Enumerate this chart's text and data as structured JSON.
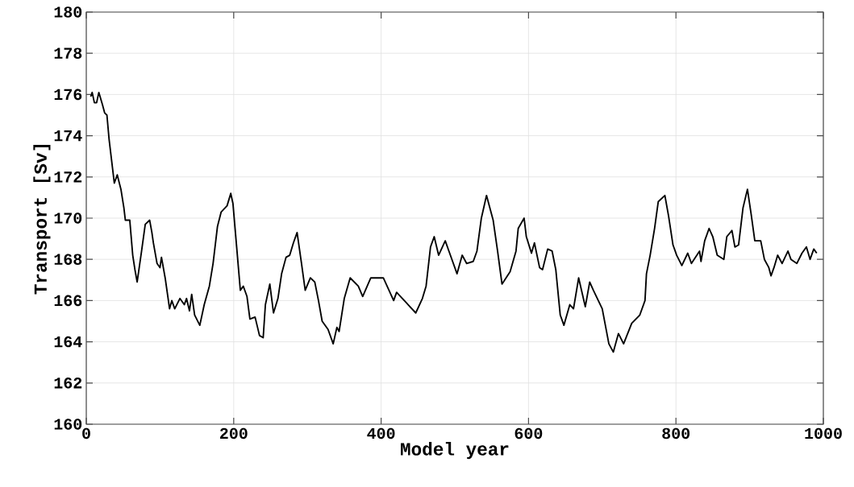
{
  "chart_data": {
    "type": "line",
    "xlabel": "Model year",
    "ylabel": "Transport [Sv]",
    "xlim": [
      0,
      1000
    ],
    "ylim": [
      160,
      180
    ],
    "xticks": [
      0,
      200,
      400,
      600,
      800,
      1000
    ],
    "yticks": [
      160,
      162,
      164,
      166,
      168,
      170,
      172,
      174,
      176,
      178,
      180
    ],
    "grid": true,
    "color": "#000000",
    "line_style": "solid",
    "x": [
      6,
      8,
      11,
      14,
      17,
      22,
      25,
      28,
      31,
      35,
      38,
      42,
      47,
      51,
      53,
      59,
      63,
      66,
      69,
      75,
      80,
      86,
      89,
      91,
      96,
      100,
      102,
      107,
      113,
      116,
      120,
      127,
      133,
      136,
      140,
      143,
      147,
      154,
      160,
      167,
      172,
      178,
      183,
      191,
      196,
      199,
      204,
      209,
      213,
      218,
      222,
      229,
      235,
      240,
      243,
      249,
      254,
      260,
      265,
      271,
      276,
      281,
      286,
      292,
      297,
      304,
      310,
      315,
      320,
      328,
      335,
      340,
      343,
      350,
      358,
      369,
      375,
      386,
      397,
      403,
      417,
      421,
      434,
      447,
      456,
      461,
      467,
      472,
      478,
      487,
      492,
      503,
      510,
      516,
      525,
      530,
      536,
      543,
      552,
      558,
      564,
      575,
      583,
      586,
      594,
      597,
      604,
      608,
      615,
      619,
      626,
      632,
      637,
      643,
      648,
      656,
      661,
      668,
      677,
      683,
      688,
      700,
      709,
      715,
      722,
      729,
      740,
      751,
      758,
      760,
      765,
      771,
      776,
      785,
      790,
      796,
      801,
      808,
      816,
      821,
      832,
      834,
      839,
      845,
      850,
      856,
      865,
      869,
      876,
      880,
      885,
      891,
      897,
      902,
      907,
      915,
      920,
      926,
      929,
      933,
      938,
      944,
      952,
      956,
      964,
      971,
      977,
      982,
      987,
      991
    ],
    "values": [
      175.9,
      176.1,
      175.6,
      175.6,
      176.1,
      175.5,
      175.1,
      175.0,
      173.8,
      172.6,
      171.7,
      172.1,
      171.4,
      170.5,
      169.9,
      169.9,
      168.2,
      167.5,
      166.9,
      168.4,
      169.7,
      169.9,
      169.3,
      168.8,
      167.8,
      167.6,
      168.1,
      167.1,
      165.6,
      166.0,
      165.6,
      166.1,
      165.8,
      166.1,
      165.5,
      166.3,
      165.3,
      164.8,
      165.8,
      166.7,
      167.8,
      169.6,
      170.3,
      170.6,
      171.2,
      170.7,
      168.6,
      166.5,
      166.7,
      166.2,
      165.1,
      165.2,
      164.3,
      164.2,
      165.8,
      166.8,
      165.4,
      166.1,
      167.3,
      168.1,
      168.2,
      168.8,
      169.3,
      167.8,
      166.5,
      167.1,
      166.9,
      166.0,
      165.0,
      164.6,
      163.9,
      164.7,
      164.5,
      166.1,
      167.1,
      166.7,
      166.2,
      167.1,
      167.1,
      167.1,
      166.0,
      166.4,
      165.9,
      165.4,
      166.1,
      166.7,
      168.6,
      169.1,
      168.2,
      168.9,
      168.4,
      167.3,
      168.2,
      167.8,
      167.9,
      168.4,
      170.0,
      171.1,
      169.9,
      168.4,
      166.8,
      167.4,
      168.4,
      169.5,
      170.0,
      169.1,
      168.3,
      168.8,
      167.6,
      167.5,
      168.5,
      168.4,
      167.5,
      165.3,
      164.8,
      165.8,
      165.6,
      167.1,
      165.7,
      166.9,
      166.5,
      165.6,
      163.9,
      163.5,
      164.4,
      163.9,
      164.9,
      165.3,
      166.0,
      167.3,
      168.2,
      169.5,
      170.8,
      171.1,
      170.1,
      168.7,
      168.2,
      167.7,
      168.3,
      167.8,
      168.4,
      167.9,
      168.9,
      169.5,
      169.1,
      168.2,
      168.0,
      169.1,
      169.4,
      168.6,
      168.7,
      170.5,
      171.4,
      170.2,
      168.9,
      168.9,
      168.0,
      167.6,
      167.2,
      167.6,
      168.2,
      167.8,
      168.4,
      168.0,
      167.8,
      168.3,
      168.6,
      168.0,
      168.5,
      168.3
    ]
  }
}
